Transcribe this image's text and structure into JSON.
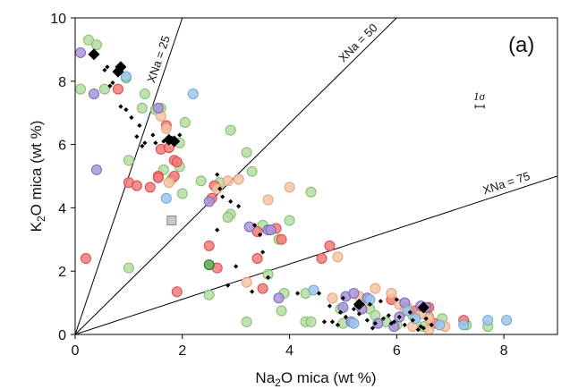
{
  "chart_data": {
    "type": "scatter",
    "panel_label": "(a)",
    "xlabel_parts": [
      "Na",
      "2",
      "O mica (wt %)"
    ],
    "ylabel_parts": [
      "K",
      "2",
      "O mica (wt %)"
    ],
    "xlim": [
      0,
      9
    ],
    "ylim": [
      0,
      10
    ],
    "x_ticks": [
      0,
      2,
      4,
      6,
      8
    ],
    "y_ticks": [
      0,
      2,
      4,
      6,
      8,
      10
    ],
    "grid": false,
    "reference_lines": [
      {
        "label": "XNa = 25",
        "slope": 5.0
      },
      {
        "label": "XNa = 50",
        "slope": 1.667
      },
      {
        "label": "XNa = 75",
        "slope": 0.556
      }
    ],
    "error_bar_label": "1σ",
    "error_bar_center": [
      7.55,
      7.2
    ],
    "colors": {
      "green": "#b5dca4",
      "red": "#f27a7a",
      "orange": "#f7c4a3",
      "purple": "#a896d8",
      "blue": "#9cc7ec",
      "black": "#000000",
      "gray": "#c8c8c8",
      "darkgreen": "#5aa84d"
    },
    "series": [
      {
        "color": "green",
        "marker": "circle",
        "x": [
          0.25,
          0.4,
          0.1,
          0.95,
          1.3,
          0.55,
          1.25,
          1.5,
          1.6,
          2.05,
          1.95,
          1.0,
          1.65,
          2.9,
          3.2,
          3.3,
          2.7,
          2.9,
          2.85,
          4.0,
          4.4,
          3.5,
          3.6,
          3.8,
          3.6,
          4.3,
          4.3,
          3.85,
          5.0,
          4.95,
          6.2,
          6.3,
          6.6,
          6.5,
          6.85,
          7.3,
          7.7,
          5.8,
          6.0,
          3.2,
          1.0,
          2.0,
          2.5,
          5.5,
          5.6,
          1.8,
          1.95,
          2.35,
          3.9,
          4.4
        ],
        "y": [
          9.3,
          9.15,
          7.75,
          8.1,
          7.6,
          7.75,
          7.15,
          7.1,
          7.15,
          6.7,
          6.05,
          5.5,
          5.2,
          6.45,
          5.75,
          5.15,
          4.8,
          3.8,
          3.7,
          3.6,
          4.5,
          3.45,
          3.3,
          3.0,
          1.9,
          1.3,
          0.4,
          0.75,
          0.35,
          0.8,
          0.8,
          0.6,
          0.55,
          0.25,
          0.5,
          0.3,
          0.25,
          0.4,
          0.3,
          0.4,
          2.1,
          4.45,
          1.25,
          0.8,
          0.6,
          4.9,
          5.3,
          4.85,
          1.3,
          0.4
        ]
      },
      {
        "color": "red",
        "marker": "circle",
        "x": [
          0.8,
          1.0,
          1.15,
          1.6,
          1.75,
          1.85,
          1.9,
          1.55,
          2.6,
          2.5,
          3.4,
          3.75,
          3.85,
          3.4,
          3.5,
          1.4,
          0.2,
          1.9,
          2.65,
          4.6,
          4.75,
          5.9,
          6.6,
          6.35,
          6.7,
          7.25,
          1.55,
          1.85,
          2.55,
          1.7
        ],
        "y": [
          7.75,
          4.8,
          4.7,
          5.85,
          5.9,
          5.5,
          5.45,
          5.0,
          4.7,
          2.8,
          3.25,
          3.35,
          3.0,
          2.4,
          1.45,
          4.65,
          2.4,
          1.35,
          2.1,
          2.4,
          2.8,
          1.1,
          0.85,
          0.75,
          0.35,
          0.45,
          4.95,
          5.0,
          4.3,
          6.6
        ]
      },
      {
        "color": "orange",
        "marker": "circle",
        "x": [
          1.6,
          1.7,
          1.8,
          1.75,
          2.65,
          2.85,
          3.05,
          3.6,
          3.2,
          4.0,
          4.9,
          4.8,
          5.3,
          5.35,
          5.9,
          6.05,
          6.2,
          6.45,
          6.6,
          6.3,
          6.9,
          6.6,
          5.6,
          6.15
        ],
        "y": [
          6.9,
          6.5,
          6.1,
          4.8,
          4.6,
          4.85,
          4.9,
          4.25,
          1.65,
          4.65,
          2.45,
          1.15,
          1.2,
          0.85,
          1.3,
          0.95,
          0.85,
          0.65,
          0.5,
          0.25,
          0.25,
          0.15,
          1.45,
          0.75
        ]
      },
      {
        "color": "purple",
        "marker": "circle",
        "x": [
          0.1,
          0.35,
          0.4,
          1.55,
          2.5,
          3.25,
          3.6,
          3.8,
          5.05,
          5.45,
          5.0,
          5.35,
          5.15,
          5.65,
          5.95,
          6.15,
          6.45,
          6.55,
          6.05,
          5.2,
          3.65
        ],
        "y": [
          8.9,
          7.6,
          5.2,
          7.15,
          4.2,
          3.4,
          3.3,
          1.15,
          1.2,
          1.15,
          0.85,
          0.8,
          0.4,
          0.35,
          0.25,
          1.0,
          0.9,
          0.85,
          0.55,
          1.3,
          3.3
        ]
      },
      {
        "color": "blue",
        "marker": "circle",
        "x": [
          0.95,
          2.2,
          1.7,
          4.45,
          5.2,
          5.5,
          6.2,
          6.35,
          7.25,
          7.7,
          8.05,
          6.8
        ],
        "y": [
          8.15,
          7.6,
          4.3,
          1.4,
          0.35,
          1.1,
          0.75,
          0.5,
          0.3,
          0.45,
          0.45,
          0.3
        ]
      },
      {
        "color": "darkgreen",
        "marker": "circle",
        "x": [
          2.5
        ],
        "y": [
          2.2
        ]
      },
      {
        "color": "gray",
        "marker": "square",
        "x": [
          1.8
        ],
        "y": [
          3.6
        ]
      },
      {
        "color": "black",
        "marker": "diamond-small",
        "x": [
          0.55,
          0.6,
          0.65,
          0.7,
          0.85,
          0.95,
          1.05,
          1.15,
          1.2,
          1.25,
          1.3,
          1.45,
          1.5,
          1.65,
          1.8,
          1.95,
          2.65,
          2.7,
          2.75,
          2.9,
          3.05,
          3.35,
          3.45,
          3.5,
          3.0,
          2.65,
          2.85,
          3.3,
          3.6,
          4.15,
          4.55,
          4.75,
          4.95,
          5.05,
          5.2,
          5.3,
          5.45,
          5.6,
          5.75,
          5.85,
          5.95,
          6.05,
          6.15,
          6.3,
          6.45,
          6.55,
          6.65,
          6.4,
          6.0,
          5.7,
          5.5,
          5.25,
          5.0,
          4.8,
          4.65,
          4.9,
          5.55,
          5.9,
          6.25,
          6.5
        ],
        "y": [
          8.35,
          8.45,
          7.85,
          7.95,
          7.2,
          7.1,
          6.85,
          6.25,
          6.6,
          5.95,
          6.05,
          6.3,
          6.05,
          6.1,
          6.2,
          6.3,
          5.05,
          4.6,
          4.35,
          4.2,
          4.05,
          3.45,
          3.15,
          2.6,
          2.15,
          3.3,
          1.55,
          1.35,
          1.8,
          1.3,
          1.3,
          0.9,
          0.7,
          0.55,
          0.8,
          0.65,
          0.45,
          0.35,
          0.5,
          0.6,
          0.4,
          0.55,
          0.3,
          0.45,
          0.25,
          0.5,
          0.3,
          0.15,
          1.1,
          1.05,
          0.95,
          0.9,
          1.15,
          0.4,
          0.4,
          0.3,
          0.2,
          0.35,
          0.7,
          0.2
        ]
      },
      {
        "color": "black",
        "marker": "diamond-large",
        "x": [
          0.35,
          0.8,
          0.85,
          1.75,
          1.85,
          5.3,
          6.5
        ],
        "y": [
          8.85,
          8.3,
          8.45,
          6.15,
          6.1,
          0.95,
          0.85
        ]
      }
    ]
  }
}
